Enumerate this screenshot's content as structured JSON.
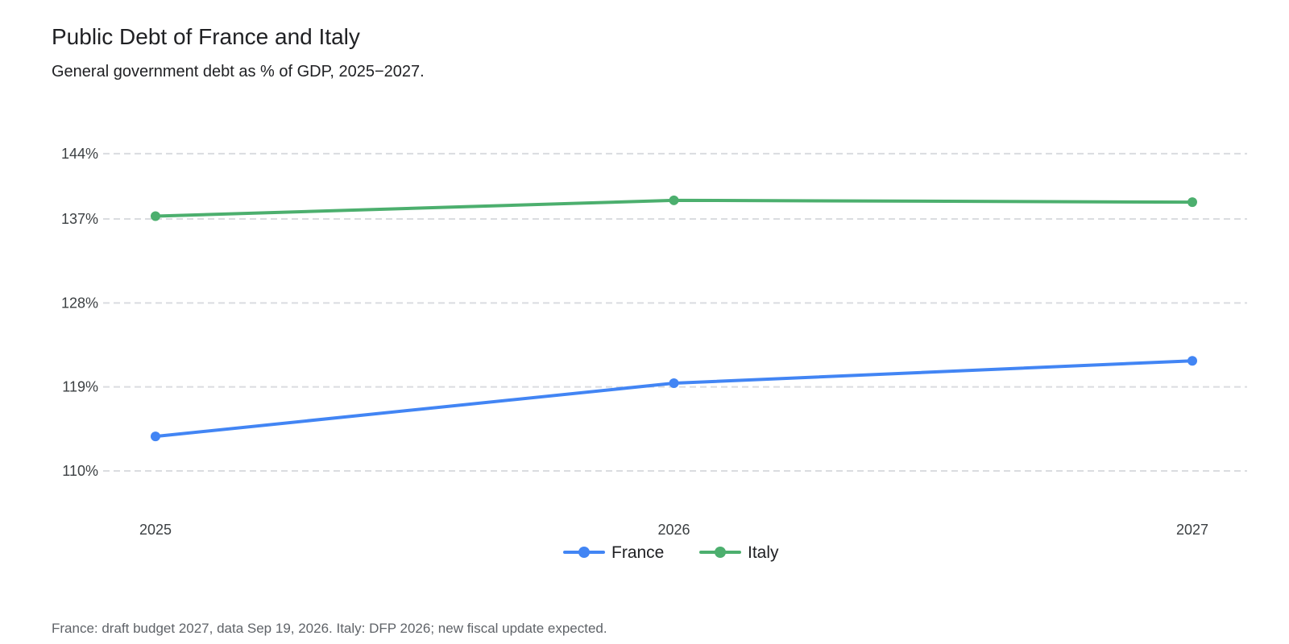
{
  "header": {
    "title": "Public Debt of France and Italy",
    "subtitle": "General government debt as % of GDP, 2025−2027."
  },
  "footnote": "France: draft budget 2027, data Sep 19, 2026. Italy: DFP 2026; new fiscal update expected.",
  "chart_data": {
    "type": "line",
    "title": "Public Debt of France and Italy",
    "subtitle": "General government debt as % of GDP, 2025−2027.",
    "xlabel": "",
    "ylabel": "",
    "x": [
      "2025",
      "2026",
      "2027"
    ],
    "y_ticks": [
      110,
      119,
      128,
      137,
      144
    ],
    "y_tick_labels": [
      "110%",
      "119%",
      "128%",
      "137%",
      "144%"
    ],
    "ylim": [
      106,
      146
    ],
    "grid": true,
    "grid_style": "dashed horizontal",
    "legend_position": "bottom-center",
    "series": [
      {
        "name": "France",
        "color": "#4285f4",
        "values": [
          113.7,
          119.4,
          121.8
        ]
      },
      {
        "name": "Italy",
        "color": "#4caf6e",
        "values": [
          137.3,
          139.0,
          138.8
        ]
      }
    ]
  }
}
